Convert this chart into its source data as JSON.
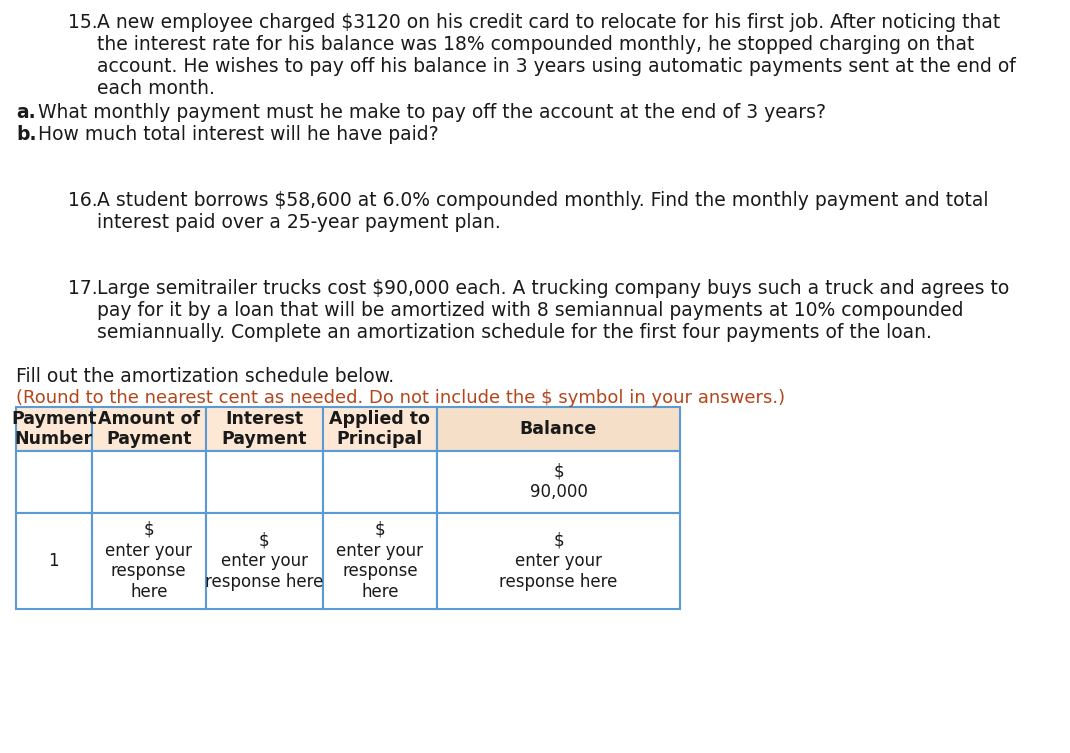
{
  "background_color": "#ffffff",
  "text_color": "#1a1a1a",
  "q15_line1": "A new employee charged $3120 on his credit card to relocate for his first job. After noticing that",
  "q15_line2": "the interest rate for his balance was 18% compounded monthly, he stopped charging on that",
  "q15_line3": "account. He wishes to pay off his balance in 3 years using automatic payments sent at the end of",
  "q15_line4": "each month.",
  "q15a_text": "What monthly payment must he make to pay off the account at the end of 3 years?",
  "q15b_text": "How much total interest will he have paid?",
  "q16_line1": "A student borrows $58,600 at 6.0% compounded monthly. Find the monthly payment and total",
  "q16_line2": "interest paid over a 25-year payment plan.",
  "q17_line1": "Large semitrailer trucks cost $90,000 each. A trucking company buys such a truck and agrees to",
  "q17_line2": "pay for it by a loan that will be amortized with 8 semiannual payments at 10% compounded",
  "q17_line3": "semiannually. Complete an amortization schedule for the first four payments of the loan.",
  "fill_text": "Fill out the amortization schedule below.",
  "round_text": "(Round to the nearest cent as needed. Do not include the $ symbol in your answers.)",
  "round_text_color": "#b5451b",
  "table_header_bg_left": "#fce8d5",
  "table_header_bg_right": "#f5dfc8",
  "table_border_color": "#5b9bd5",
  "table_cell_bg": "#ffffff",
  "col_headers": [
    "Payment\nNumber",
    "Amount of\nPayment",
    "Interest\nPayment",
    "Applied to\nPrincipal",
    "Balance"
  ],
  "row0_balance": "$\n90,000",
  "row1_col0": "1",
  "row1_col1": "$\nenter your\nresponse\nhere",
  "row1_col2": "$\nenter your\nresponse here",
  "row1_col3": "$\nenter your\nresponse\nhere",
  "row1_col4": "$\nenter your\nresponse here",
  "font_size_body": 13.5,
  "font_size_table_header": 12.5,
  "font_size_table_body": 12.0
}
